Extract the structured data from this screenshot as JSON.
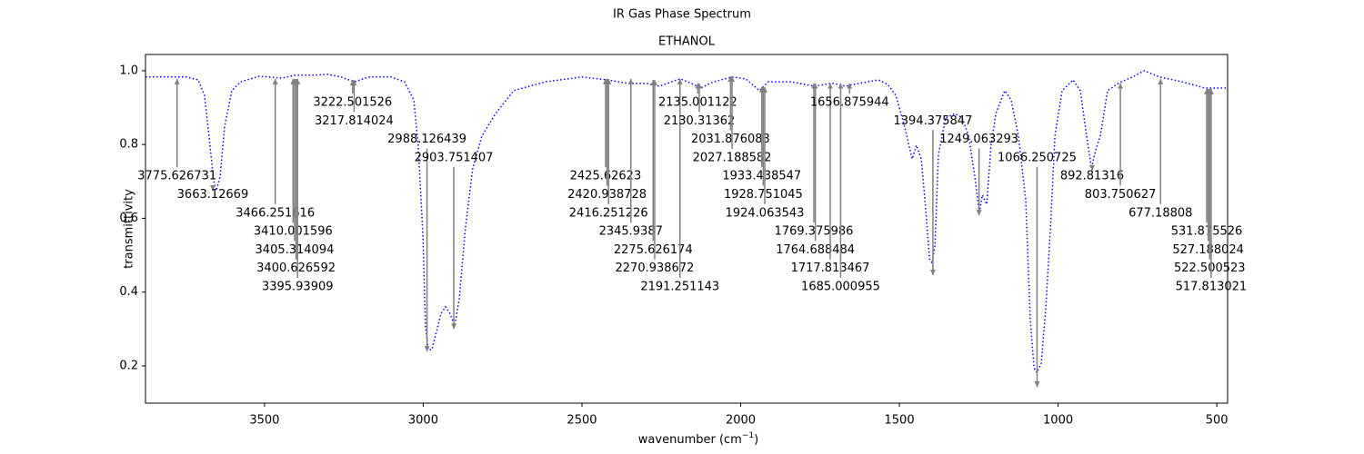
{
  "chart_data": {
    "type": "line",
    "title": "IR Gas Phase Spectrum",
    "subtitle": "ETHANOL",
    "xlabel": [
      "wavenumber (cm",
      "−1",
      ")"
    ],
    "ylabel": "transmittivity",
    "xlim": [
      3875,
      466
    ],
    "ylim": [
      0.099,
      1.044
    ],
    "xticks": [
      3500,
      3000,
      2500,
      2000,
      1500,
      1000,
      500
    ],
    "yticks": [
      0.2,
      0.4,
      0.6,
      0.8,
      {
        "value": 1,
        "label": "1.0"
      }
    ],
    "x": [
      3875,
      3818,
      3746,
      3709,
      3689,
      3675,
      3660,
      3652,
      3640,
      3626,
      3603,
      3575,
      3517,
      3446,
      3403,
      3345,
      3302,
      3259,
      3216,
      3173,
      3102,
      3059,
      3030,
      3016,
      3001,
      2993,
      2984,
      2973,
      2958,
      2944,
      2930,
      2916,
      2901,
      2887,
      2867,
      2844,
      2815,
      2772,
      2715,
      2615,
      2500,
      2420,
      2357,
      2299,
      2256,
      2191,
      2156,
      2127,
      2085,
      2027,
      1984,
      1941,
      1913,
      1841,
      1769,
      1712,
      1669,
      1626,
      1566,
      1537,
      1511,
      1483,
      1460,
      1446,
      1431,
      1417,
      1405,
      1397,
      1388,
      1377,
      1354,
      1325,
      1302,
      1282,
      1262,
      1248,
      1239,
      1225,
      1211,
      1196,
      1168,
      1148,
      1125,
      1102,
      1088,
      1076,
      1067,
      1053,
      1039,
      1024,
      1010,
      987,
      953,
      930,
      910,
      895,
      881,
      867,
      844,
      810,
      766,
      729,
      680,
      609,
      537,
      466
    ],
    "series": [
      {
        "color": "#0000ff",
        "line_style": "dotted",
        "values": [
          0.983,
          0.983,
          0.983,
          0.975,
          0.933,
          0.823,
          0.7,
          0.675,
          0.712,
          0.847,
          0.946,
          0.97,
          0.985,
          0.98,
          0.988,
          0.988,
          0.99,
          0.983,
          0.97,
          0.983,
          0.983,
          0.97,
          0.921,
          0.798,
          0.552,
          0.305,
          0.244,
          0.244,
          0.293,
          0.342,
          0.36,
          0.342,
          0.31,
          0.379,
          0.576,
          0.736,
          0.823,
          0.884,
          0.946,
          0.97,
          0.983,
          0.975,
          0.966,
          0.966,
          0.958,
          0.978,
          0.966,
          0.953,
          0.97,
          0.983,
          0.978,
          0.946,
          0.97,
          0.97,
          0.958,
          0.966,
          0.958,
          0.966,
          0.975,
          0.963,
          0.933,
          0.847,
          0.761,
          0.798,
          0.761,
          0.626,
          0.49,
          0.478,
          0.527,
          0.773,
          0.872,
          0.884,
          0.872,
          0.823,
          0.712,
          0.613,
          0.663,
          0.638,
          0.798,
          0.884,
          0.946,
          0.921,
          0.823,
          0.65,
          0.33,
          0.195,
          0.182,
          0.207,
          0.355,
          0.576,
          0.823,
          0.946,
          0.975,
          0.946,
          0.823,
          0.736,
          0.786,
          0.823,
          0.946,
          0.966,
          0.983,
          1.0,
          0.983,
          0.97,
          0.953,
          0.953
        ]
      }
    ],
    "annotations": {
      "color": "#808080",
      "x": [
        3775.626731,
        3663.12669,
        3466.251616,
        3410.001596,
        3405.314094,
        3400.626592,
        3395.93909,
        3222.501526,
        3217.814024,
        2988.126439,
        2903.751407,
        2425.62623,
        2420.938728,
        2416.251226,
        2345.9387,
        2275.626174,
        2270.938672,
        2191.251143,
        2135.001122,
        2130.31362,
        2031.876083,
        2027.188582,
        1933.438547,
        1928.751045,
        1924.063543,
        1769.375986,
        1764.688484,
        1717.813467,
        1685.000955,
        1656.875944,
        1394.375847,
        1249.063293,
        1066.250725,
        892.81316,
        803.750627,
        677.18808,
        531.875526,
        527.188024,
        522.500523,
        517.813021
      ],
      "y": [
        0.978,
        0.675,
        0.978,
        0.978,
        0.978,
        0.978,
        0.978,
        0.975,
        0.975,
        0.239,
        0.3,
        0.978,
        0.978,
        0.978,
        0.978,
        0.975,
        0.975,
        0.978,
        0.966,
        0.966,
        0.985,
        0.985,
        0.956,
        0.956,
        0.956,
        0.966,
        0.966,
        0.966,
        0.966,
        0.966,
        0.446,
        0.608,
        0.143,
        0.729,
        0.966,
        0.978,
        0.951,
        0.951,
        0.951,
        0.951
      ]
    }
  }
}
